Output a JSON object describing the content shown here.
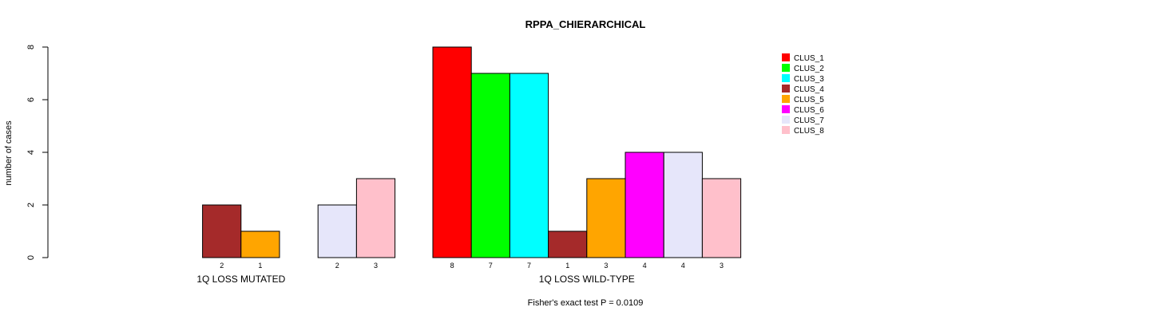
{
  "chart_data": {
    "type": "bar",
    "title": "RPPA_CHIERARCHICAL",
    "ylabel": "number of cases",
    "xlabel": "",
    "ylim": [
      0,
      8
    ],
    "yticks": [
      0,
      2,
      4,
      6,
      8
    ],
    "footnote": "Fisher's exact test P = 0.0109",
    "groups": [
      "1Q LOSS MUTATED",
      "1Q LOSS WILD-TYPE"
    ],
    "series": [
      {
        "name": "CLUS_1",
        "color": "#ff0000",
        "values": [
          0,
          8
        ]
      },
      {
        "name": "CLUS_2",
        "color": "#00ff00",
        "values": [
          0,
          7
        ]
      },
      {
        "name": "CLUS_3",
        "color": "#00ffff",
        "values": [
          0,
          7
        ]
      },
      {
        "name": "CLUS_4",
        "color": "#a52a2a",
        "values": [
          2,
          1
        ]
      },
      {
        "name": "CLUS_5",
        "color": "#ffa500",
        "values": [
          1,
          3
        ]
      },
      {
        "name": "CLUS_6",
        "color": "#ff00ff",
        "values": [
          0,
          4
        ]
      },
      {
        "name": "CLUS_7",
        "color": "#e6e6fa",
        "values": [
          2,
          4
        ]
      },
      {
        "name": "CLUS_8",
        "color": "#ffc0cb",
        "values": [
          3,
          3
        ]
      }
    ],
    "legend": {
      "position": "top-right",
      "labels": [
        "CLUS_1",
        "CLUS_2",
        "CLUS_3",
        "CLUS_4",
        "CLUS_5",
        "CLUS_6",
        "CLUS_7",
        "CLUS_8"
      ]
    }
  }
}
